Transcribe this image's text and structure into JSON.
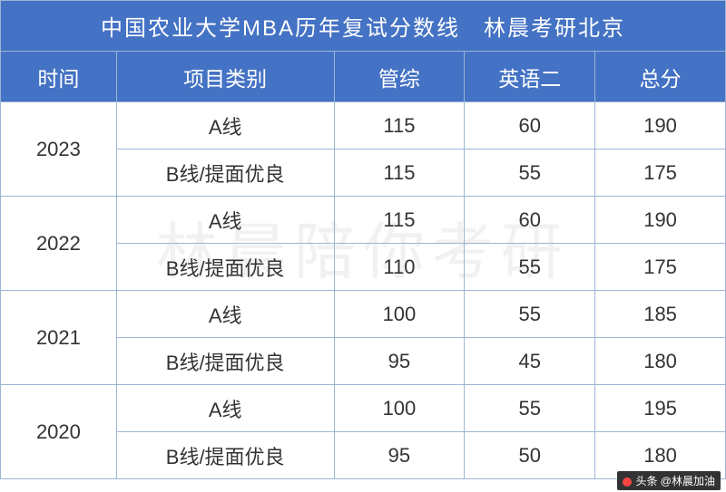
{
  "watermark_text": "林晨陪你考研",
  "table": {
    "title": "中国农业大学MBA历年复试分数线　林晨考研北京",
    "columns": [
      "时间",
      "项目类别",
      "管综",
      "英语二",
      "总分"
    ],
    "title_bg_color": "#4472c4",
    "header_bg_color": "#4472c4",
    "header_text_color": "#ffffff",
    "border_color": "#9db4d6",
    "cell_text_color": "#333333",
    "title_fontsize": 24,
    "header_fontsize": 23,
    "cell_fontsize": 22,
    "years": [
      {
        "year": "2023",
        "rows": [
          {
            "category": "A线",
            "guanzong": "115",
            "english2": "60",
            "total": "190"
          },
          {
            "category": "B线/提面优良",
            "guanzong": "115",
            "english2": "55",
            "total": "175"
          }
        ]
      },
      {
        "year": "2022",
        "rows": [
          {
            "category": "A线",
            "guanzong": "115",
            "english2": "60",
            "total": "190"
          },
          {
            "category": "B线/提面优良",
            "guanzong": "110",
            "english2": "55",
            "total": "175"
          }
        ]
      },
      {
        "year": "2021",
        "rows": [
          {
            "category": "A线",
            "guanzong": "100",
            "english2": "55",
            "total": "185"
          },
          {
            "category": "B线/提面优良",
            "guanzong": "95",
            "english2": "45",
            "total": "180"
          }
        ]
      },
      {
        "year": "2020",
        "rows": [
          {
            "category": "A线",
            "guanzong": "100",
            "english2": "55",
            "total": "195"
          },
          {
            "category": "B线/提面优良",
            "guanzong": "95",
            "english2": "50",
            "total": "180"
          }
        ]
      }
    ]
  },
  "footer_tag": "头条 @林晨加油"
}
